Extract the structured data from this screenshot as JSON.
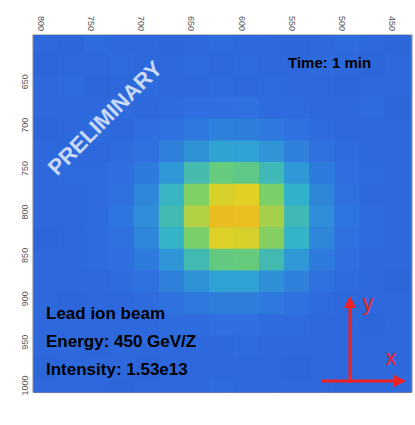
{
  "chart_data": {
    "type": "heatmap",
    "x": [
      795,
      770,
      745,
      720,
      695,
      670,
      645,
      620,
      595,
      570,
      545,
      520,
      495,
      470,
      445
    ],
    "y": [
      605,
      630,
      655,
      680,
      705,
      730,
      755,
      780,
      805,
      830,
      855,
      880,
      905,
      930,
      955,
      980,
      1005
    ],
    "values": [
      [
        2.0,
        1.9,
        2.1,
        2.0,
        2.0,
        1.9,
        2.0,
        2.1,
        2.0,
        2.0,
        1.9,
        2.0,
        2.1,
        2.0,
        1.9
      ],
      [
        1.9,
        2.0,
        2.0,
        2.1,
        2.0,
        2.0,
        2.1,
        2.0,
        2.1,
        2.0,
        2.0,
        2.1,
        2.0,
        1.9,
        2.0
      ],
      [
        2.0,
        2.1,
        1.9,
        2.0,
        2.1,
        2.0,
        2.0,
        2.1,
        2.0,
        2.1,
        2.0,
        2.0,
        1.9,
        2.0,
        2.0
      ],
      [
        2.0,
        2.0,
        2.0,
        2.1,
        2.0,
        2.1,
        2.2,
        2.2,
        2.3,
        2.1,
        2.1,
        2.0,
        2.0,
        2.1,
        1.9
      ],
      [
        1.9,
        2.0,
        2.1,
        2.0,
        2.2,
        2.3,
        2.5,
        2.8,
        2.7,
        2.5,
        2.3,
        2.1,
        2.0,
        2.0,
        2.0
      ],
      [
        2.0,
        2.0,
        2.0,
        2.1,
        2.3,
        2.8,
        3.4,
        4.0,
        3.9,
        3.5,
        2.8,
        2.3,
        2.1,
        2.0,
        2.0
      ],
      [
        2.0,
        2.1,
        2.1,
        2.2,
        2.6,
        3.6,
        5.2,
        6.3,
        6.1,
        5.0,
        3.6,
        2.6,
        2.2,
        2.1,
        2.0
      ],
      [
        2.0,
        2.0,
        2.1,
        2.3,
        3.0,
        4.7,
        6.9,
        8.5,
        8.7,
        6.8,
        4.5,
        3.0,
        2.3,
        2.0,
        2.0
      ],
      [
        2.0,
        2.0,
        2.1,
        2.4,
        3.2,
        5.1,
        7.8,
        9.7,
        9.6,
        7.6,
        5.0,
        3.2,
        2.4,
        2.1,
        2.0
      ],
      [
        1.9,
        2.0,
        2.1,
        2.3,
        3.0,
        4.6,
        6.8,
        8.6,
        8.5,
        7.0,
        4.6,
        3.0,
        2.3,
        2.1,
        2.0
      ],
      [
        2.0,
        2.0,
        2.1,
        2.2,
        2.6,
        3.5,
        5.1,
        6.2,
        6.3,
        5.1,
        3.6,
        2.6,
        2.2,
        2.0,
        2.0
      ],
      [
        2.0,
        2.0,
        2.0,
        2.1,
        2.3,
        2.8,
        3.4,
        3.9,
        3.9,
        3.3,
        2.8,
        2.3,
        2.1,
        2.0,
        1.9
      ],
      [
        2.0,
        1.9,
        2.0,
        2.0,
        2.1,
        2.3,
        2.5,
        2.7,
        2.7,
        2.5,
        2.3,
        2.1,
        2.0,
        2.0,
        2.0
      ],
      [
        2.0,
        2.0,
        2.0,
        2.0,
        2.0,
        2.1,
        2.1,
        2.2,
        2.2,
        2.1,
        2.1,
        2.0,
        2.0,
        1.9,
        2.0
      ],
      [
        2.0,
        2.0,
        1.9,
        2.0,
        2.0,
        2.0,
        2.0,
        2.0,
        2.1,
        2.0,
        2.0,
        2.0,
        2.0,
        2.0,
        2.0
      ],
      [
        1.9,
        2.0,
        2.0,
        2.0,
        1.9,
        2.0,
        2.0,
        2.0,
        2.0,
        2.0,
        1.9,
        2.0,
        2.0,
        2.0,
        2.0
      ],
      [
        2.0,
        2.0,
        2.0,
        1.9,
        2.0,
        2.0,
        2.0,
        2.1,
        2.0,
        2.0,
        2.0,
        2.0,
        1.9,
        2.0,
        2.0
      ]
    ],
    "zlim": [
      0,
      11
    ],
    "xlim": [
      808,
      430
    ],
    "xticks": [
      800,
      750,
      700,
      650,
      600,
      550,
      500,
      450
    ],
    "ylim": [
      1008,
      596
    ],
    "yticks": [
      650,
      700,
      750,
      800,
      850,
      900,
      950,
      1000
    ],
    "grid": false,
    "annotations": {
      "watermark": "PRELIMINARY",
      "time": "Time: 1 min",
      "info": [
        "Lead ion beam",
        "Energy: 450 GeV/Z",
        "Intensity: 1.53e13"
      ],
      "arrow_x": "x",
      "arrow_y": "y"
    }
  }
}
